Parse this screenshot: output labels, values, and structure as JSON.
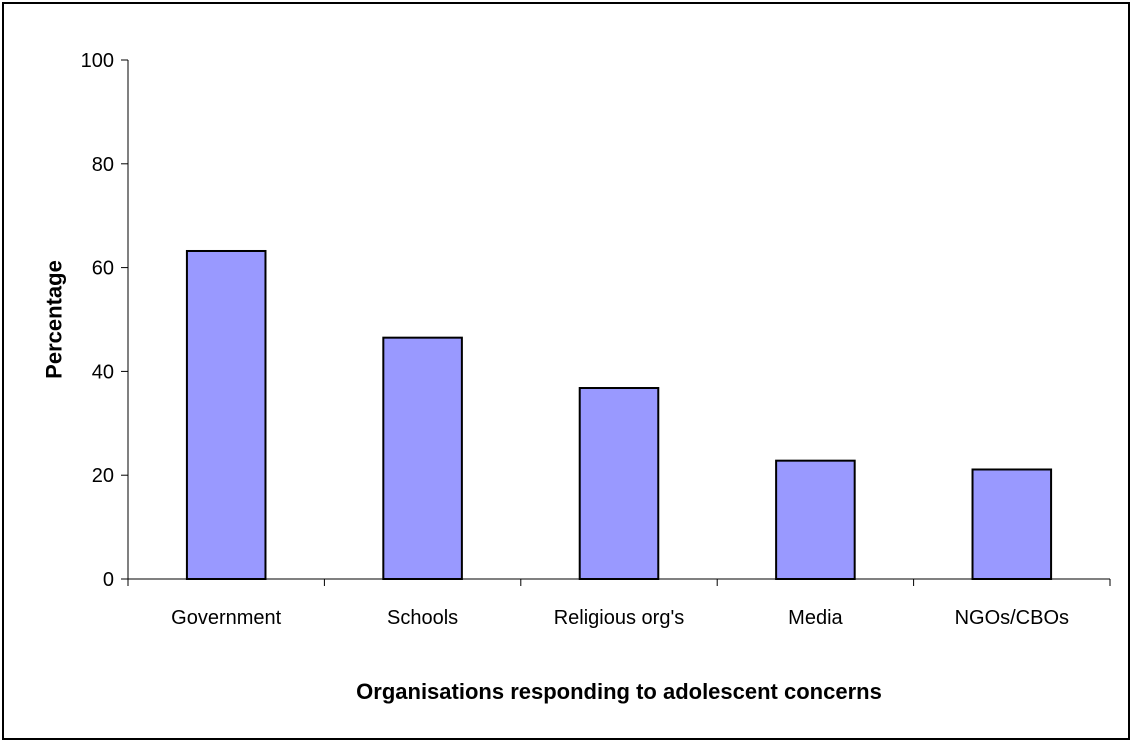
{
  "chart_data": {
    "type": "bar",
    "title": "",
    "xlabel": "Organisations responding to adolescent concerns",
    "ylabel": "Percentage",
    "categories": [
      "Government",
      "Schools",
      "Religious org's",
      "Media",
      "NGOs/CBOs"
    ],
    "values": [
      63.2,
      46.5,
      36.8,
      22.8,
      21.1
    ],
    "ylim": [
      0,
      100
    ],
    "yticks": [
      "0",
      "20",
      "40",
      "60",
      "80",
      "100"
    ],
    "grid": false,
    "legend": "none",
    "colors": {
      "bar_fill": "#9999ff",
      "bar_stroke": "#000000",
      "axis": "#000000"
    }
  }
}
